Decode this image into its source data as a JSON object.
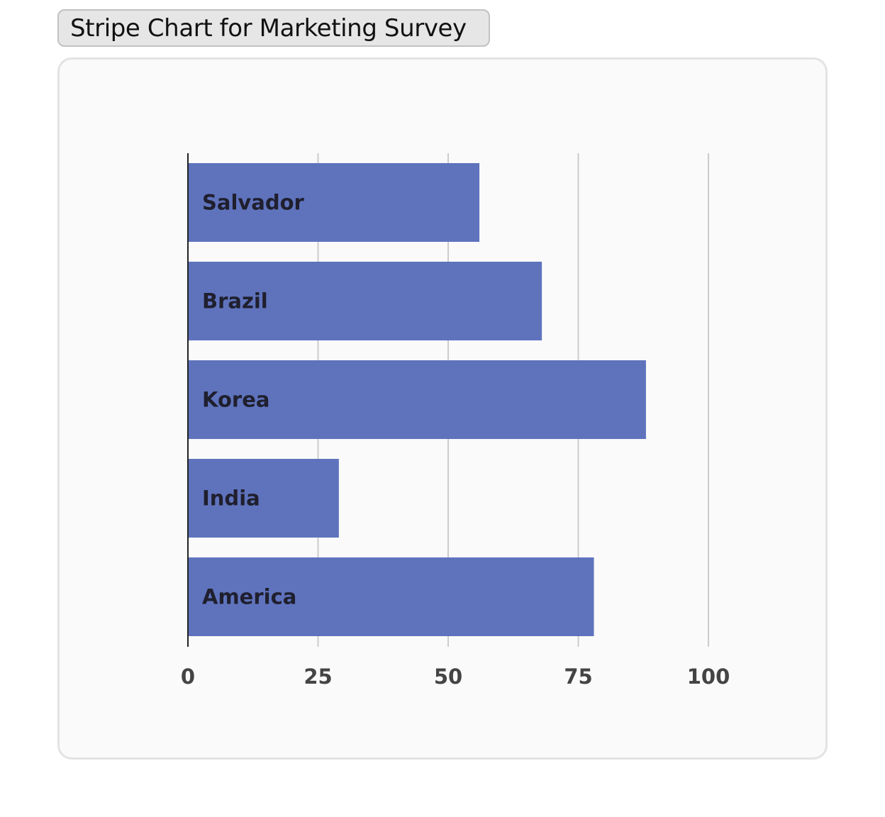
{
  "header": {
    "title": "Stripe Chart for Marketing Survey"
  },
  "colors": {
    "bar": "#5f73bd",
    "grid": "#cccccc",
    "axis": "#222222",
    "panel_bg": "#fafafa",
    "title_bg": "#e6e6e6"
  },
  "chart_data": {
    "type": "bar",
    "orientation": "horizontal",
    "title": "",
    "xlabel": "",
    "ylabel": "",
    "categories": [
      "Salvador",
      "Brazil",
      "Korea",
      "India",
      "America"
    ],
    "values": [
      56,
      68,
      88,
      29,
      78
    ],
    "xlim": [
      0,
      100
    ],
    "x_ticks": [
      "0",
      "25",
      "50",
      "75",
      "100"
    ],
    "grid": "vertical",
    "legend": "none"
  }
}
